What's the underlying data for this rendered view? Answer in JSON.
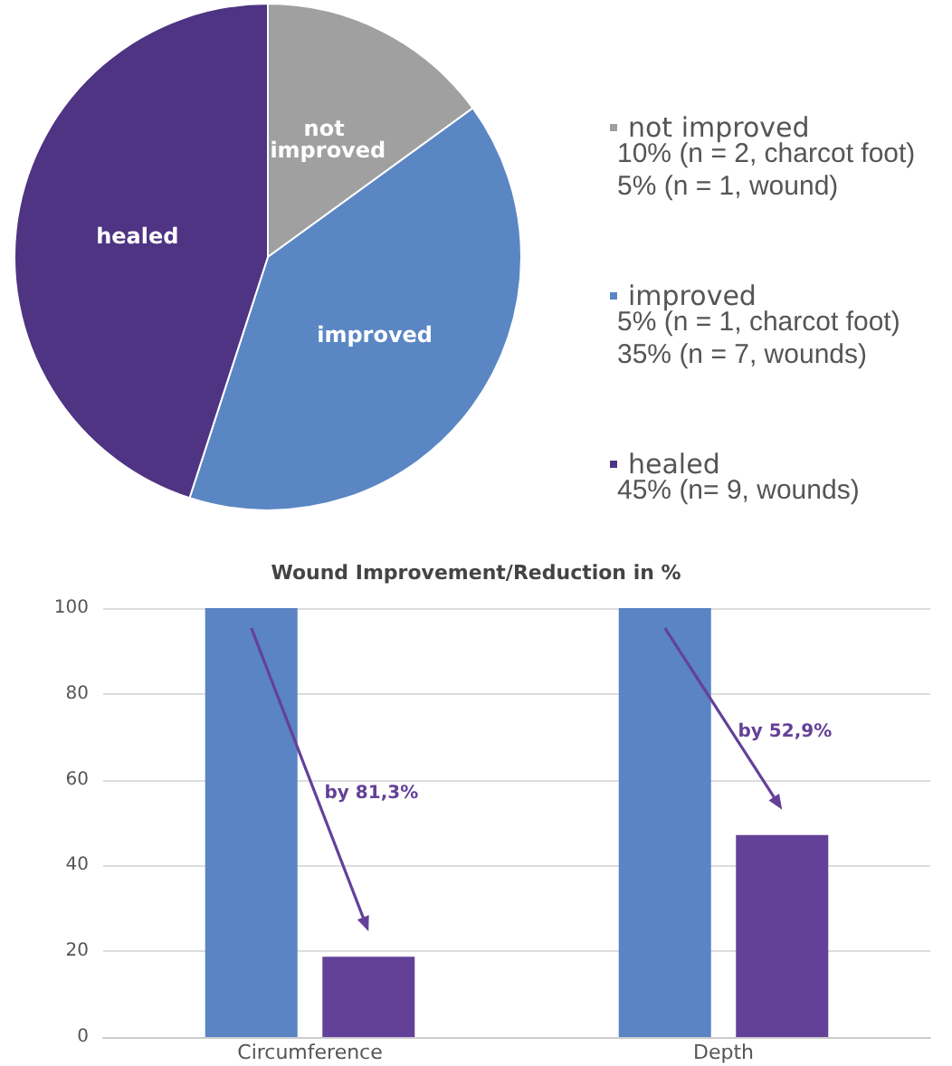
{
  "chart_data": [
    {
      "type": "pie",
      "categories": [
        "not improved",
        "improved",
        "healed"
      ],
      "values": [
        15,
        40,
        45
      ],
      "colors": [
        "#a0a0a0",
        "#5b86c4",
        "#4e3483"
      ],
      "legend": "right",
      "annotations": [
        "10% (n = 2, charcot foot)\n5% (n = 1, wound)",
        "5% (n = 1, charcot foot)\n35% (n = 7, wounds)",
        "45% (n= 9, wounds)"
      ]
    },
    {
      "type": "bar",
      "title": "Wound Improvement/Reduction in %",
      "categories": [
        "Circumference",
        "Depth"
      ],
      "series": [
        {
          "color": "#5a84c3",
          "values": [
            100,
            100
          ]
        },
        {
          "color": "#644198",
          "values": [
            18.7,
            47.1
          ]
        }
      ],
      "ylim": [
        0,
        100
      ],
      "yticks": [
        0,
        20,
        40,
        60,
        80,
        100
      ],
      "grid": "y",
      "legend": false,
      "annotations": [
        "by 81,3%",
        "by 52,9%"
      ]
    }
  ]
}
